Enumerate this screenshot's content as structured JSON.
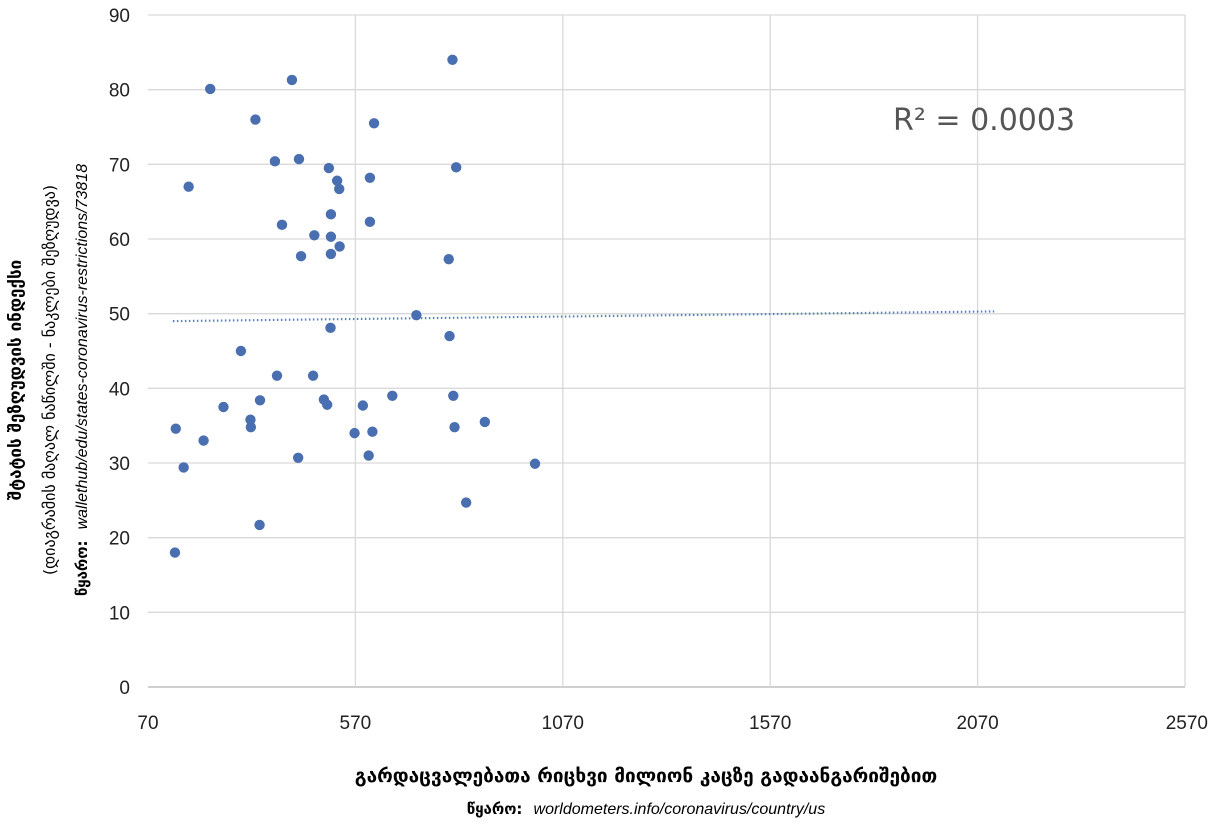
{
  "chart_data": {
    "type": "scatter",
    "xlim": [
      70,
      2570
    ],
    "ylim": [
      0,
      90
    ],
    "x_ticks": [
      70,
      570,
      1070,
      1570,
      2070,
      2570
    ],
    "y_ticks": [
      0,
      10,
      20,
      30,
      40,
      50,
      60,
      70,
      80,
      90
    ],
    "grid": true,
    "annotation": "R² = 0.0003",
    "trendline": {
      "x": [
        130,
        2110
      ],
      "y": [
        49.0,
        50.3
      ]
    },
    "xlabel": "გარდაცვალებათა რიცხვი მილიონ კაცზე გადაანგარიშებით",
    "x_source_label": "წყარო:",
    "x_source": "worldometers.info/coronavirus/country/us",
    "ylabel": "შტატის შეზღუდვის ინდექსი",
    "ylabel_sub": "(დიაგრამის მაღალ ნაწილში - ნაკლები შეზღუდვა)",
    "y_source_label": "წყარო:",
    "y_source": "wallethub/edu/states-coronavirus-restrictions/73818",
    "points": [
      {
        "x": 135,
        "y": 18
      },
      {
        "x": 137,
        "y": 34.6
      },
      {
        "x": 156,
        "y": 29.4
      },
      {
        "x": 168,
        "y": 67
      },
      {
        "x": 204,
        "y": 33
      },
      {
        "x": 220,
        "y": 80.1
      },
      {
        "x": 252,
        "y": 37.5
      },
      {
        "x": 294,
        "y": 45
      },
      {
        "x": 317,
        "y": 35.8
      },
      {
        "x": 318,
        "y": 34.8
      },
      {
        "x": 329,
        "y": 76
      },
      {
        "x": 340,
        "y": 38.4
      },
      {
        "x": 339,
        "y": 21.7
      },
      {
        "x": 376,
        "y": 70.4
      },
      {
        "x": 381,
        "y": 41.7
      },
      {
        "x": 393,
        "y": 61.9
      },
      {
        "x": 417,
        "y": 81.3
      },
      {
        "x": 432,
        "y": 30.7
      },
      {
        "x": 434,
        "y": 70.7
      },
      {
        "x": 439,
        "y": 57.7
      },
      {
        "x": 468,
        "y": 41.7
      },
      {
        "x": 471,
        "y": 60.5
      },
      {
        "x": 494,
        "y": 38.5
      },
      {
        "x": 502,
        "y": 37.8
      },
      {
        "x": 506,
        "y": 69.5
      },
      {
        "x": 511,
        "y": 63.3
      },
      {
        "x": 511,
        "y": 60.3
      },
      {
        "x": 511,
        "y": 58
      },
      {
        "x": 510,
        "y": 48.1
      },
      {
        "x": 526,
        "y": 67.8
      },
      {
        "x": 531,
        "y": 66.7
      },
      {
        "x": 532,
        "y": 59
      },
      {
        "x": 568,
        "y": 34
      },
      {
        "x": 588,
        "y": 37.7
      },
      {
        "x": 602,
        "y": 31
      },
      {
        "x": 605,
        "y": 68.2
      },
      {
        "x": 605,
        "y": 62.3
      },
      {
        "x": 611,
        "y": 34.2
      },
      {
        "x": 615,
        "y": 75.5
      },
      {
        "x": 659,
        "y": 39
      },
      {
        "x": 717,
        "y": 49.8
      },
      {
        "x": 795,
        "y": 57.3
      },
      {
        "x": 797,
        "y": 47
      },
      {
        "x": 804,
        "y": 84
      },
      {
        "x": 806,
        "y": 39
      },
      {
        "x": 809,
        "y": 34.8
      },
      {
        "x": 813,
        "y": 69.6
      },
      {
        "x": 837,
        "y": 24.7
      },
      {
        "x": 882,
        "y": 35.5
      },
      {
        "x": 1003,
        "y": 29.9
      }
    ]
  }
}
